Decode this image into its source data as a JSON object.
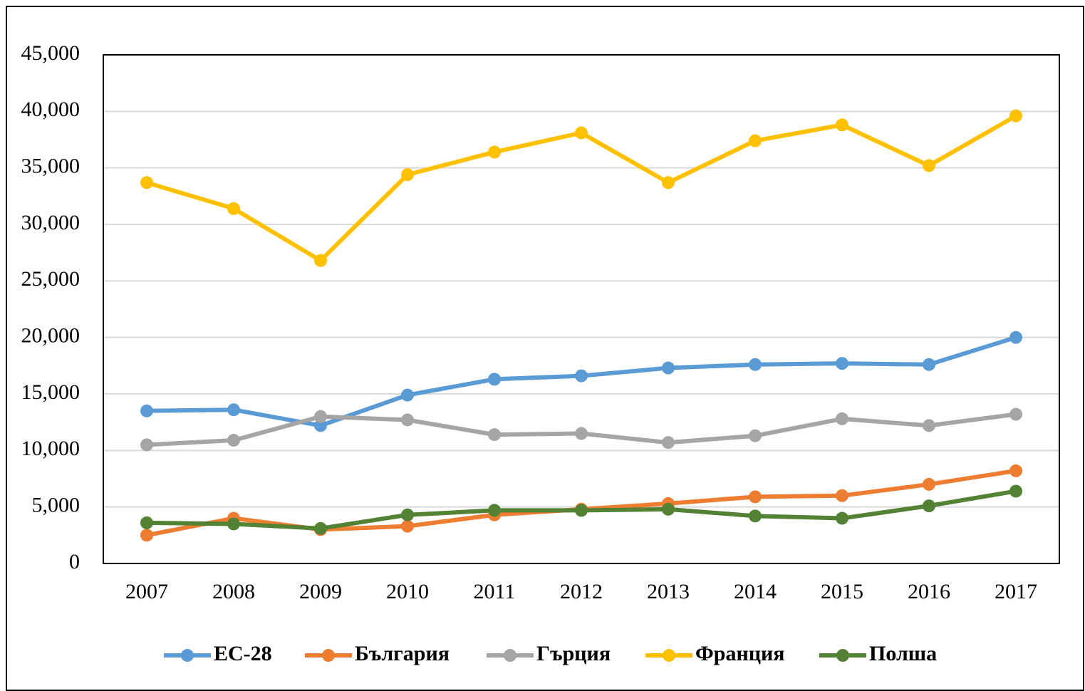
{
  "chart_data": {
    "type": "line",
    "categories": [
      "2007",
      "2008",
      "2009",
      "2010",
      "2011",
      "2012",
      "2013",
      "2014",
      "2015",
      "2016",
      "2017"
    ],
    "series": [
      {
        "name": "ЕС-28",
        "color": "#5b9bd5",
        "values": [
          13500,
          13600,
          12200,
          14900,
          16300,
          16600,
          17300,
          17600,
          17700,
          17600,
          20000
        ]
      },
      {
        "name": "България",
        "color": "#ed7d31",
        "values": [
          2500,
          4000,
          3000,
          3300,
          4300,
          4800,
          5300,
          5900,
          6000,
          7000,
          8200
        ]
      },
      {
        "name": "Гърция",
        "color": "#a5a5a5",
        "values": [
          10500,
          10900,
          13000,
          12700,
          11400,
          11500,
          10700,
          11300,
          12800,
          12200,
          13200
        ]
      },
      {
        "name": "Франция",
        "color": "#ffc000",
        "values": [
          33700,
          31400,
          26800,
          34400,
          36400,
          38100,
          33700,
          37400,
          38800,
          35200,
          39600
        ]
      },
      {
        "name": "Полша",
        "color": "#548235",
        "values": [
          3600,
          3500,
          3100,
          4300,
          4700,
          4700,
          4800,
          4200,
          4000,
          5100,
          6400
        ]
      }
    ],
    "ylim": [
      0,
      45000
    ],
    "yticks": [
      0,
      {
        "value": 5000,
        "label": "5,000"
      },
      {
        "value": 10000,
        "label": "10,000"
      },
      {
        "value": 15000,
        "label": "15,000"
      },
      {
        "value": 20000,
        "label": "20,000"
      },
      {
        "value": 25000,
        "label": "25,000"
      },
      {
        "value": 30000,
        "label": "30,000"
      },
      {
        "value": 35000,
        "label": "35,000"
      },
      {
        "value": 40000,
        "label": "40,000"
      },
      {
        "value": 45000,
        "label": "45,000"
      }
    ],
    "grid": true,
    "legend": "bottom"
  }
}
